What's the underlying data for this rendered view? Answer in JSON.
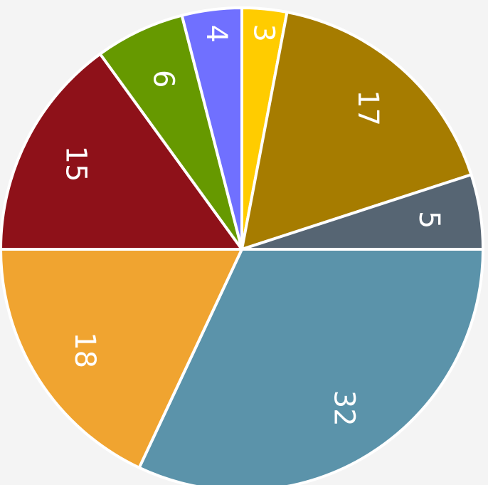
{
  "chart_data": {
    "type": "pie",
    "values": [
      3,
      17,
      5,
      32,
      18,
      15,
      6,
      4
    ],
    "colors": [
      "#ffcc00",
      "#a67c00",
      "#566573",
      "#5b93aa",
      "#f0a430",
      "#8e1119",
      "#669900",
      "#7070ff"
    ],
    "start_angle": 0,
    "direction": "clockwise"
  }
}
